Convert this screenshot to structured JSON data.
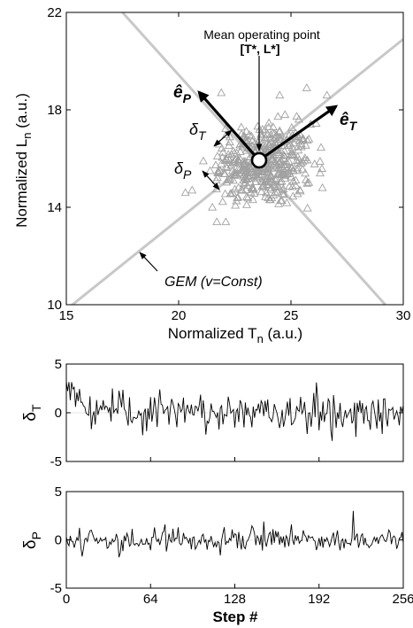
{
  "chart_data": [
    {
      "type": "scatter",
      "xlabel": "Normalized T",
      "xlabel_sub": "n",
      "xlabel_unit": " (a.u.)",
      "ylabel": "Normalized L",
      "ylabel_sub": "n",
      "ylabel_unit": " (a.u.)",
      "xlim": [
        15,
        30
      ],
      "ylim": [
        10,
        22
      ],
      "xticks": [
        15,
        20,
        25,
        30
      ],
      "yticks": [
        10,
        14,
        18,
        22
      ],
      "marker": "open-triangle",
      "marker_color": "#a0a0a0",
      "gem_line_color": "#c8c8c8",
      "gem_lines": [
        {
          "x": [
            15,
            30
          ],
          "y": [
            9.8,
            20.9
          ]
        },
        {
          "x": [
            17.5,
            29.2
          ],
          "y": [
            22.0,
            10.0
          ]
        }
      ],
      "mean_point": {
        "x": 23.75,
        "y": 15.85
      },
      "annotations": {
        "mean_title": "Mean operating point",
        "mean_coords": "[T*, L*]",
        "e_p": "ê",
        "e_p_sub": "P",
        "e_t": "ê",
        "e_t_sub": "T",
        "delta_t": "δ",
        "delta_t_sub": "T",
        "delta_p": "δ",
        "delta_p_sub": "P",
        "gem": "GEM (v=Const)"
      },
      "cluster": {
        "center": [
          23.75,
          15.75
        ],
        "spread": [
          1.1,
          0.85
        ],
        "count": 430
      },
      "outliers": [
        [
          26.6,
          18.6
        ],
        [
          25.7,
          18.9
        ],
        [
          24.5,
          18.6
        ],
        [
          21.9,
          18.7
        ],
        [
          20.3,
          14.6
        ],
        [
          20.6,
          14.7
        ],
        [
          21.5,
          14.0
        ],
        [
          21.7,
          13.4
        ],
        [
          22.1,
          13.4
        ],
        [
          26.4,
          14.8
        ],
        [
          26.3,
          15.4
        ],
        [
          25.8,
          16.8
        ],
        [
          21.1,
          15.9
        ],
        [
          21.4,
          15.5
        ]
      ]
    },
    {
      "type": "line",
      "ylabel": "δ",
      "ylabel_sub": "T",
      "xlim": [
        0,
        256
      ],
      "ylim": [
        -5,
        5
      ],
      "yticks": [
        -5,
        0,
        5
      ],
      "xticks": [],
      "n_points": 257,
      "amplitude": 1.05,
      "start_excursion": [
        3.2,
        2.4,
        3.6,
        1.8,
        3.1,
        2.2,
        2.9,
        0.8,
        1.9,
        1.4,
        2.2,
        0.5,
        1.6,
        0.9
      ]
    },
    {
      "type": "line",
      "ylabel": "δ",
      "ylabel_sub": "P",
      "xlabel": "Step #",
      "xlim": [
        0,
        256
      ],
      "ylim": [
        -5,
        5
      ],
      "yticks": [
        -5,
        0,
        5
      ],
      "xticks": [
        0,
        64,
        128,
        192,
        256
      ],
      "n_points": 257,
      "amplitude": 0.65,
      "spikes": [
        [
          218,
          3.0
        ],
        [
          40,
          -1.8
        ],
        [
          150,
          1.9
        ],
        [
          171,
          1.6
        ]
      ]
    }
  ]
}
